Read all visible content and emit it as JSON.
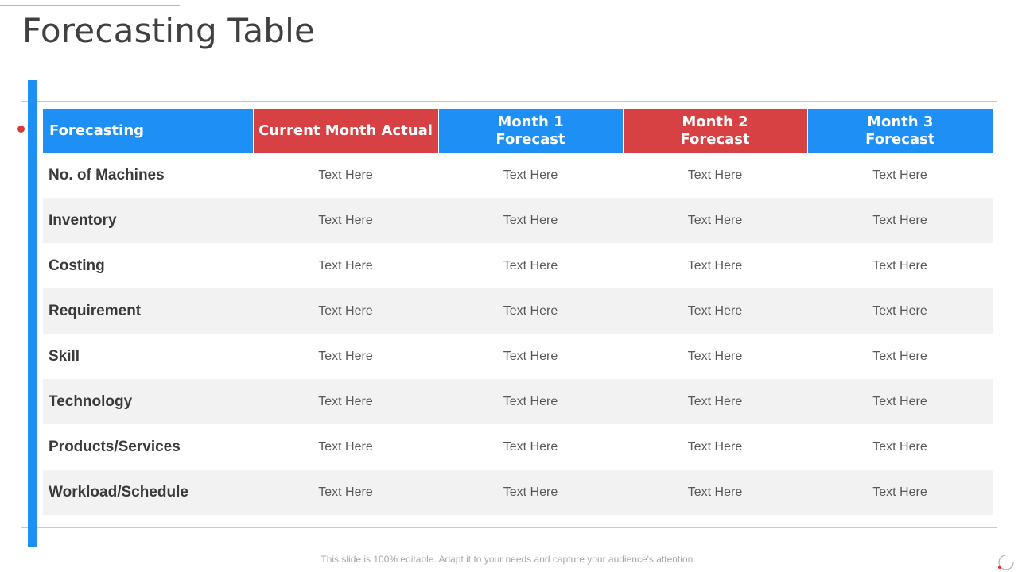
{
  "slide": {
    "title": "Forecasting Table",
    "footer": "This slide is 100% editable. Adapt it to your needs and capture your audience's attention."
  },
  "table": {
    "headers": [
      {
        "lines": [
          "Forecasting"
        ],
        "color": "#1e8ff5"
      },
      {
        "lines": [
          "Current Month Actual"
        ],
        "color": "#d74143"
      },
      {
        "lines": [
          "Month 1",
          "Forecast"
        ],
        "color": "#1e8ff5"
      },
      {
        "lines": [
          "Month 2",
          "Forecast"
        ],
        "color": "#d74143"
      },
      {
        "lines": [
          "Month 3",
          "Forecast"
        ],
        "color": "#1e8ff5"
      }
    ],
    "rows": [
      {
        "label": "No. of Machines",
        "cells": [
          "Text Here",
          "Text Here",
          "Text Here",
          "Text Here"
        ]
      },
      {
        "label": "Inventory",
        "cells": [
          "Text Here",
          "Text Here",
          "Text Here",
          "Text Here"
        ]
      },
      {
        "label": "Costing",
        "cells": [
          "Text Here",
          "Text Here",
          "Text Here",
          "Text Here"
        ]
      },
      {
        "label": "Requirement",
        "cells": [
          "Text Here",
          "Text Here",
          "Text Here",
          "Text Here"
        ]
      },
      {
        "label": "Skill",
        "cells": [
          "Text Here",
          "Text Here",
          "Text Here",
          "Text Here"
        ]
      },
      {
        "label": "Technology",
        "cells": [
          "Text Here",
          "Text Here",
          "Text Here",
          "Text Here"
        ]
      },
      {
        "label": "Products/Services",
        "cells": [
          "Text Here",
          "Text Here",
          "Text Here",
          "Text Here"
        ]
      },
      {
        "label": "Workload/Schedule",
        "cells": [
          "Text Here",
          "Text Here",
          "Text Here",
          "Text Here"
        ]
      }
    ]
  },
  "colors": {
    "accent_blue": "#1e8ff5",
    "accent_red": "#d74143",
    "row_alt": "#f2f2f2"
  },
  "icons": {
    "corner": "spinner-ring-icon"
  }
}
